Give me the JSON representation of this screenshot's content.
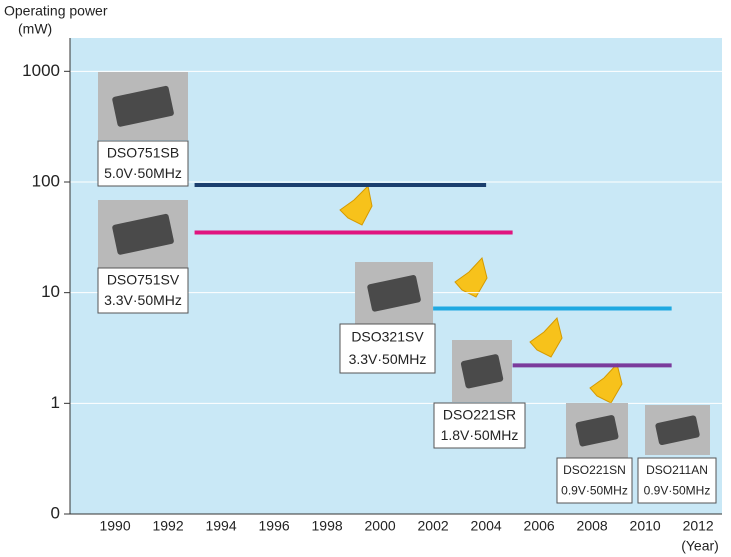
{
  "chart_data": {
    "type": "line",
    "ylabel": "Operating power",
    "yunit": "(mW)",
    "xlabel": "(Year)",
    "log_y": true,
    "grid": true,
    "xlim": [
      1988.3,
      2012.9
    ],
    "ylim": [
      0.1,
      2000
    ],
    "xticks": [
      1990,
      1992,
      1994,
      1996,
      1998,
      2000,
      2002,
      2004,
      2006,
      2008,
      2010,
      2012
    ],
    "yticks": [
      {
        "value": 0.1,
        "label": "0"
      },
      1,
      10,
      100,
      1000
    ],
    "series": [
      {
        "name": "DSO751SB",
        "spec": "5.0V·50MHz",
        "color": "#1b3f6e",
        "x": [
          1993,
          2004
        ],
        "values": [
          94,
          94
        ]
      },
      {
        "name": "DSO751SV",
        "spec": "3.3V·50MHz",
        "color": "#e0157f",
        "x": [
          1993,
          2005
        ],
        "values": [
          35,
          35
        ]
      },
      {
        "name": "DSO321SV",
        "spec": "3.3V·50MHz",
        "color": "#1fa9e1",
        "x": [
          2002,
          2011
        ],
        "values": [
          7.2,
          7.2
        ]
      },
      {
        "name": "DSO221SR",
        "spec": "1.8V·50MHz",
        "color": "#7b3b9c",
        "x": [
          2005,
          2011
        ],
        "values": [
          2.2,
          2.2
        ]
      }
    ],
    "other_products": [
      {
        "name": "DSO221SN",
        "spec": "0.9V·50MHz"
      },
      {
        "name": "DSO211AN",
        "spec": "0.9V·50MHz"
      }
    ]
  }
}
